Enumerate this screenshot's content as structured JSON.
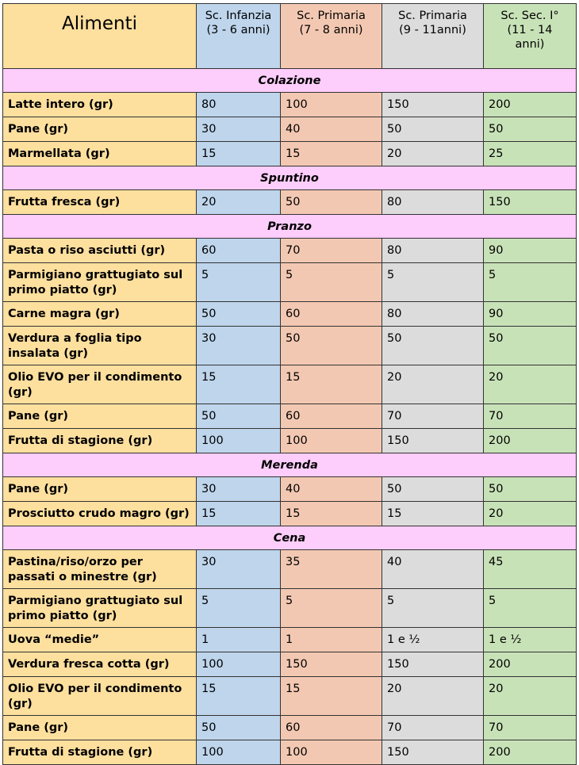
{
  "headers": [
    {
      "line1": "Alimenti",
      "line2": "",
      "line3": ""
    },
    {
      "line1": "Sc. Infanzia",
      "line2": "(3 - 6 anni)",
      "line3": ""
    },
    {
      "line1": "Sc. Primaria",
      "line2": "(7 - 8 anni)",
      "line3": ""
    },
    {
      "line1": "Sc. Primaria",
      "line2": "(9 - 11anni)",
      "line3": ""
    },
    {
      "line1": "Sc. Sec. I°",
      "line2": "(11 - 14",
      "line3": "anni)"
    }
  ],
  "sections": [
    {
      "title": "Colazione",
      "rows": [
        {
          "food": "Latte intero (gr)",
          "values": [
            "80",
            "100",
            "150",
            "200"
          ]
        },
        {
          "food": "Pane (gr)",
          "values": [
            "30",
            "40",
            "50",
            "50"
          ]
        },
        {
          "food": "Marmellata (gr)",
          "values": [
            "15",
            "15",
            "20",
            "25"
          ]
        }
      ]
    },
    {
      "title": "Spuntino",
      "rows": [
        {
          "food": "Frutta fresca (gr)",
          "values": [
            "20",
            "50",
            "80",
            "150"
          ]
        }
      ]
    },
    {
      "title": "Pranzo",
      "rows": [
        {
          "food": "Pasta o riso asciutti (gr)",
          "values": [
            "60",
            "70",
            "80",
            "90"
          ]
        },
        {
          "food": "Parmigiano grattugiato sul primo piatto (gr)",
          "values": [
            "5",
            "5",
            "5",
            "5"
          ]
        },
        {
          "food": "Carne magra (gr)",
          "values": [
            "50",
            "60",
            "80",
            "90"
          ]
        },
        {
          "food": "Verdura a foglia tipo insalata (gr)",
          "values": [
            "30",
            "50",
            "50",
            "50"
          ]
        },
        {
          "food": "Olio EVO per il condimento (gr)",
          "values": [
            "15",
            "15",
            "20",
            "20"
          ]
        },
        {
          "food": "Pane (gr)",
          "values": [
            "50",
            "60",
            "70",
            "70"
          ]
        },
        {
          "food": "Frutta di stagione (gr)",
          "values": [
            "100",
            "100",
            "150",
            "200"
          ]
        }
      ]
    },
    {
      "title": "Merenda",
      "rows": [
        {
          "food": "Pane (gr)",
          "values": [
            "30",
            "40",
            "50",
            "50"
          ]
        },
        {
          "food": "Prosciutto crudo magro (gr)",
          "values": [
            "15",
            "15",
            "15",
            "20"
          ]
        }
      ]
    },
    {
      "title": "Cena",
      "rows": [
        {
          "food": "Pastina/riso/orzo per passati o minestre (gr)",
          "values": [
            "30",
            "35",
            "40",
            "45"
          ]
        },
        {
          "food": "Parmigiano grattugiato sul primo piatto (gr)",
          "values": [
            "5",
            "5",
            "5",
            "5"
          ]
        },
        {
          "food": "Uova “medie”",
          "values": [
            "1",
            "1",
            "1 e ½",
            "1 e ½"
          ]
        },
        {
          "food": "Verdura fresca cotta (gr)",
          "values": [
            "100",
            "150",
            "150",
            "200"
          ]
        },
        {
          "food": "Olio EVO per il condimento (gr)",
          "values": [
            "15",
            "15",
            "20",
            "20"
          ]
        },
        {
          "food": "Pane (gr)",
          "values": [
            "50",
            "60",
            "70",
            "70"
          ]
        },
        {
          "food": "Frutta di stagione (gr)",
          "values": [
            "100",
            "100",
            "150",
            "200"
          ]
        }
      ]
    }
  ]
}
